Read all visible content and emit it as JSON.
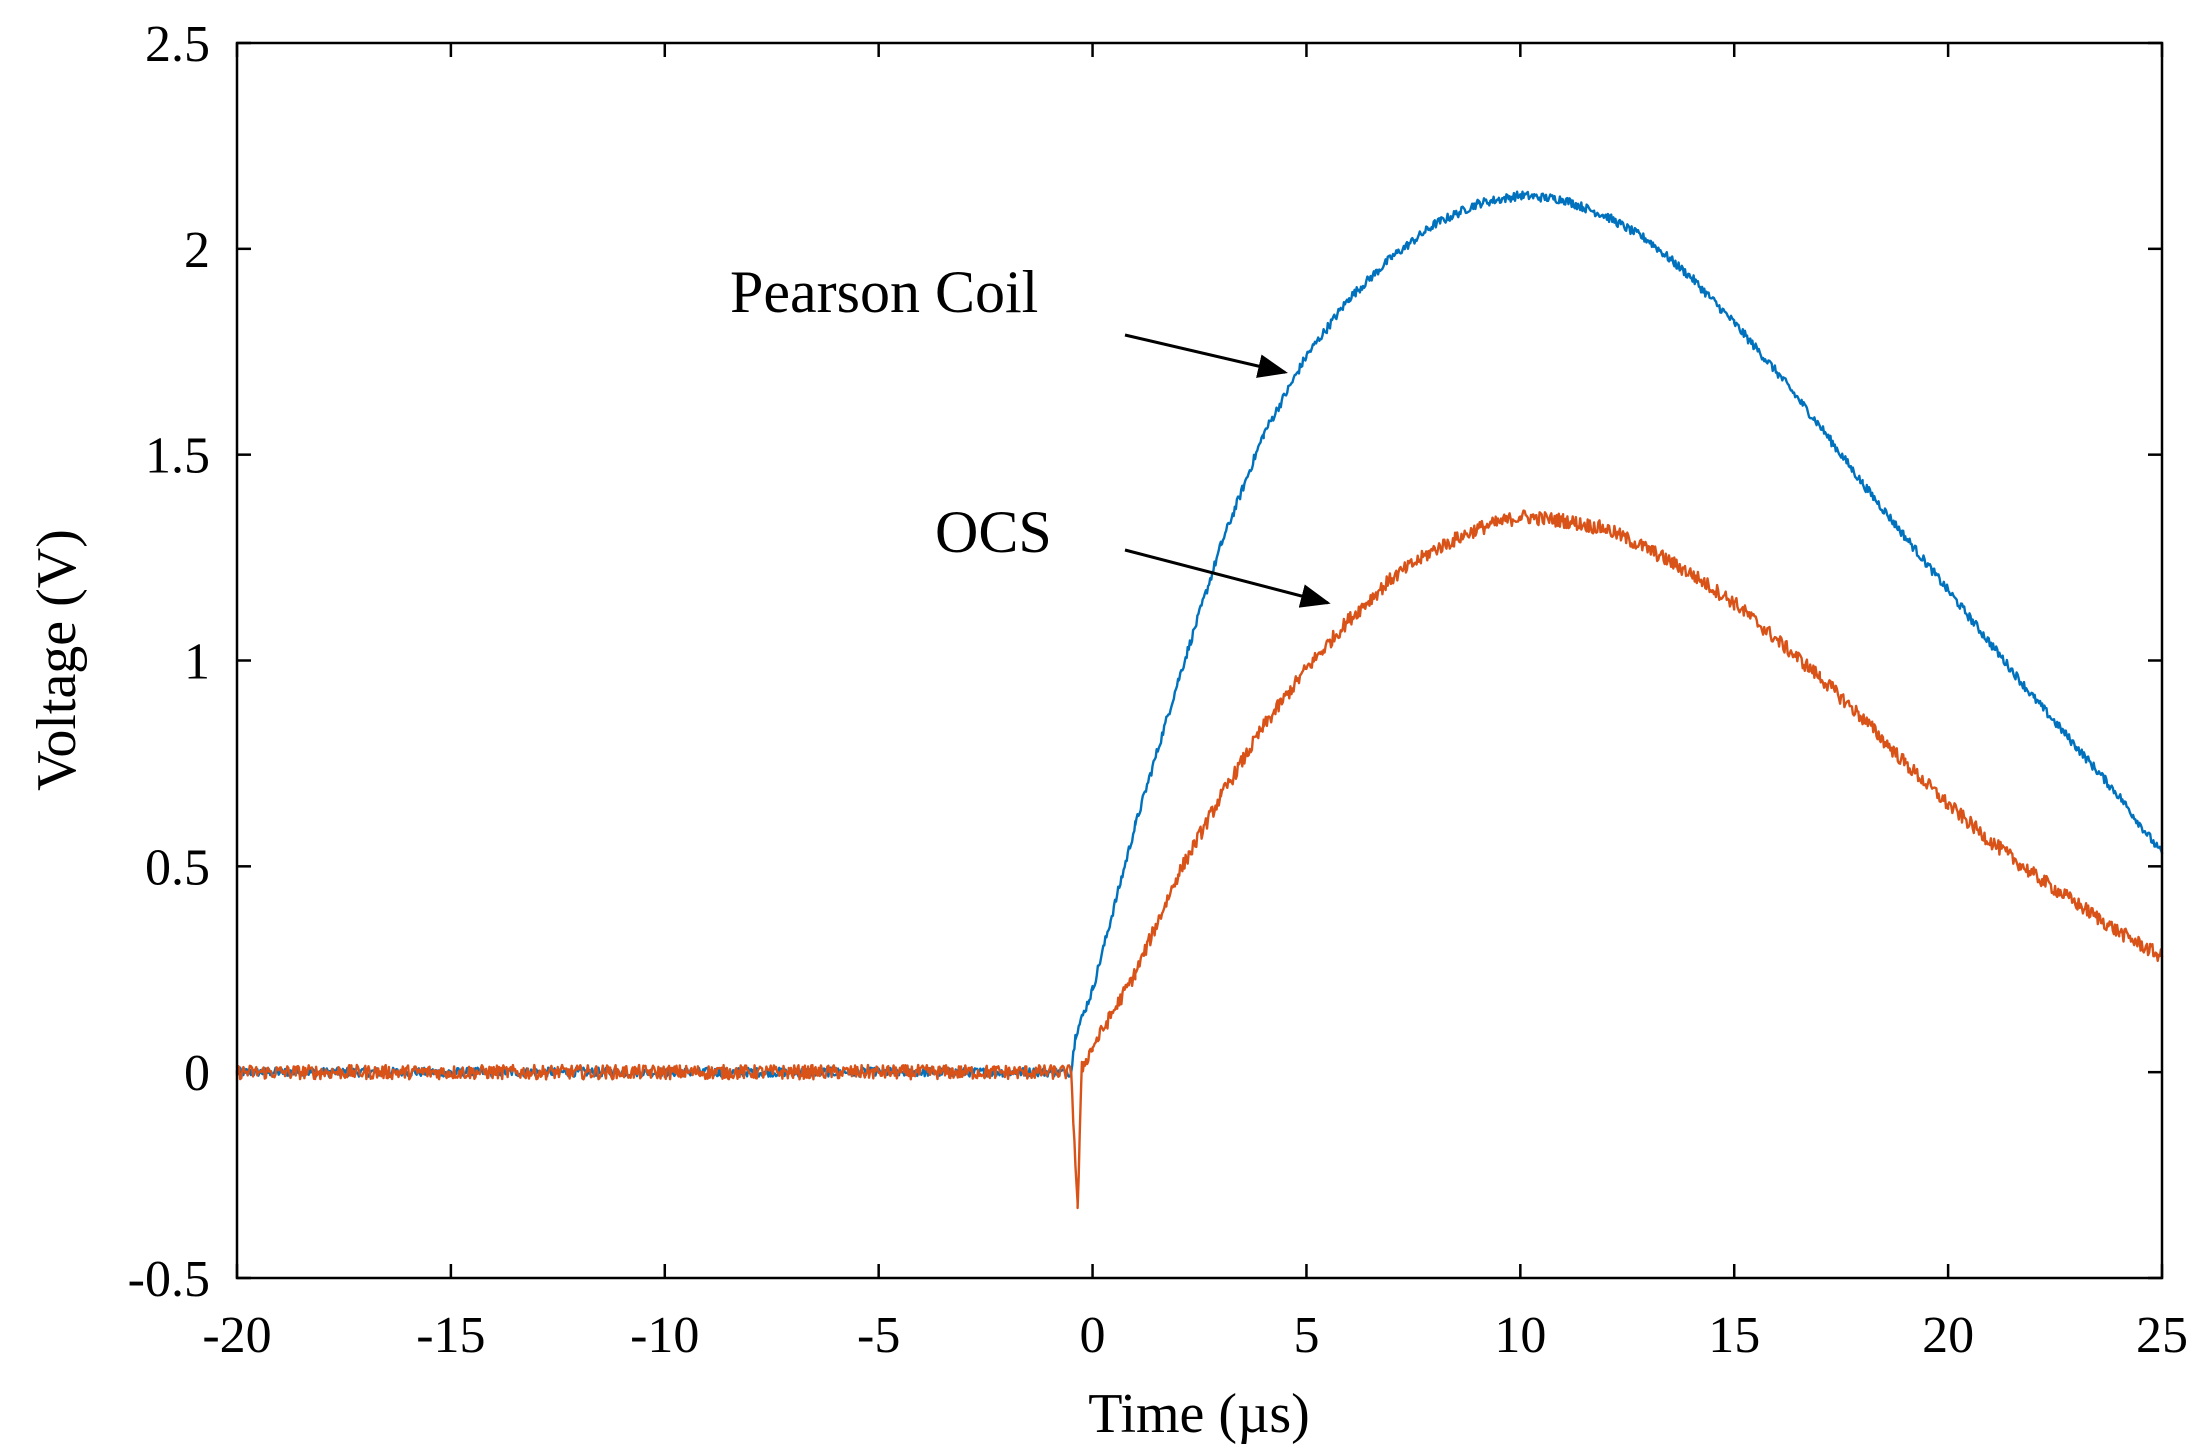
{
  "chart_data": {
    "type": "line",
    "title": "",
    "xlabel": "Time (µs)",
    "ylabel": "Voltage (V)",
    "xlim": [
      -20,
      25
    ],
    "ylim": [
      -0.5,
      2.5
    ],
    "grid": false,
    "x_ticks": [
      -20,
      -15,
      -10,
      -5,
      0,
      5,
      10,
      15,
      20,
      25
    ],
    "x_tick_labels": [
      "-20",
      "-15",
      "-10",
      "-5",
      "0",
      "5",
      "10",
      "15",
      "20",
      "25"
    ],
    "y_ticks": [
      -0.5,
      0,
      0.5,
      1,
      1.5,
      2,
      2.5
    ],
    "y_tick_labels": [
      "-0.5",
      "0",
      "0.5",
      "1",
      "1.5",
      "2",
      "2.5"
    ],
    "series": [
      {
        "name": "Pearson Coil",
        "color": "#0072BD",
        "x": [
          -20,
          -10,
          -0.5,
          -0.4,
          0,
          1,
          2,
          3,
          4,
          5,
          6,
          7,
          8,
          9,
          10,
          11,
          12,
          13,
          14,
          15,
          16,
          17,
          18,
          19,
          20,
          21,
          22,
          23,
          24,
          25
        ],
        "y": [
          0,
          0,
          0,
          0.09,
          0.2,
          0.6,
          0.95,
          1.28,
          1.55,
          1.74,
          1.88,
          1.98,
          2.06,
          2.11,
          2.13,
          2.12,
          2.08,
          2.02,
          1.93,
          1.82,
          1.7,
          1.57,
          1.43,
          1.3,
          1.17,
          1.04,
          0.91,
          0.79,
          0.67,
          0.53
        ]
      },
      {
        "name": "OCS",
        "color": "#D95319",
        "x": [
          -20,
          -10,
          -0.5,
          -0.35,
          -0.25,
          0,
          1,
          2,
          3,
          4,
          5,
          6,
          7,
          8,
          9,
          10,
          11,
          12,
          13,
          14,
          15,
          16,
          17,
          18,
          19,
          20,
          21,
          22,
          23,
          24,
          25
        ],
        "y": [
          0,
          0,
          0,
          -0.33,
          0.01,
          0.06,
          0.24,
          0.48,
          0.67,
          0.84,
          0.98,
          1.1,
          1.2,
          1.27,
          1.32,
          1.35,
          1.34,
          1.32,
          1.27,
          1.21,
          1.14,
          1.05,
          0.96,
          0.86,
          0.75,
          0.65,
          0.56,
          0.48,
          0.41,
          0.34,
          0.28
        ]
      }
    ],
    "annotations": [
      {
        "text": "Pearson Coil",
        "target_series": "Pearson Coil",
        "arrow_to": [
          4.5,
          1.7
        ]
      },
      {
        "text": "OCS",
        "target_series": "OCS",
        "arrow_to": [
          5.5,
          1.14
        ]
      }
    ]
  }
}
